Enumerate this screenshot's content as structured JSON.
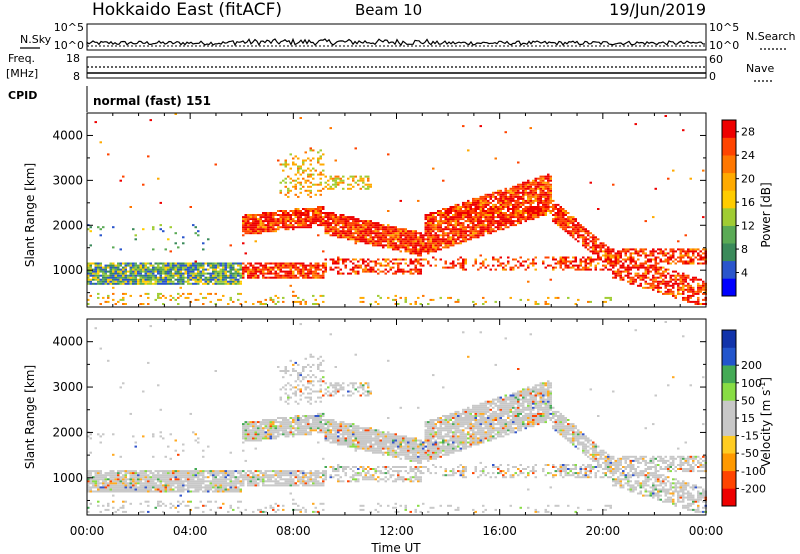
{
  "header": {
    "title": "Hokkaido East (fitACF)",
    "beam": "Beam 10",
    "date": "19/Jun/2019"
  },
  "panels": {
    "nsky": {
      "label": "N.Sky",
      "right_label": "N.Search",
      "left_ticks": [
        "10^5",
        "10^0"
      ],
      "right_ticks": [
        "10^5",
        "10^0"
      ]
    },
    "freq": {
      "label": "Freq.",
      "unit": "[MHz]",
      "left_ticks": [
        "18",
        "8"
      ],
      "right_label": "Nave",
      "right_ticks": [
        "60",
        "0"
      ]
    },
    "cpid": {
      "label": "CPID",
      "value": "normal (fast) 151"
    }
  },
  "colors": {
    "power": [
      "#0000ff",
      "#2a55cc",
      "#3a8a5a",
      "#5aaa55",
      "#a0cc33",
      "#ffcc00",
      "#ffaa00",
      "#ff7700",
      "#ff4400",
      "#ee0000"
    ],
    "velocity": [
      "#ee0000",
      "#ff4400",
      "#ff9900",
      "#ffcc22",
      "#c8c8c8",
      "#c8c8c8",
      "#88dd44",
      "#44aa55",
      "#2255cc",
      "#1133aa"
    ]
  },
  "chart_data": [
    {
      "type": "heatmap",
      "panel": "power",
      "ylabel": "Slant Range [km]",
      "ylim": [
        180,
        4500
      ],
      "y_ticks": [
        "1000",
        "2000",
        "3000",
        "4000"
      ],
      "xlim": [
        "00:00",
        "24:00"
      ],
      "colorbar": {
        "label": "Power [dB]",
        "ticks": [
          "4",
          "8",
          "12",
          "16",
          "20",
          "24",
          "28"
        ],
        "range": [
          0,
          30
        ]
      }
    },
    {
      "type": "heatmap",
      "panel": "velocity",
      "ylabel": "Slant Range [km]",
      "ylim": [
        180,
        4500
      ],
      "y_ticks": [
        "1000",
        "2000",
        "3000",
        "4000"
      ],
      "xlabel": "Time UT",
      "x_ticks": [
        "00:00",
        "04:00",
        "08:00",
        "12:00",
        "16:00",
        "20:00",
        "00:00"
      ],
      "colorbar": {
        "label": "Velocity [m s^-1]",
        "ticks": [
          "-200",
          "-100",
          "-50",
          "-15",
          "15",
          "50",
          "100",
          "200"
        ]
      }
    }
  ]
}
